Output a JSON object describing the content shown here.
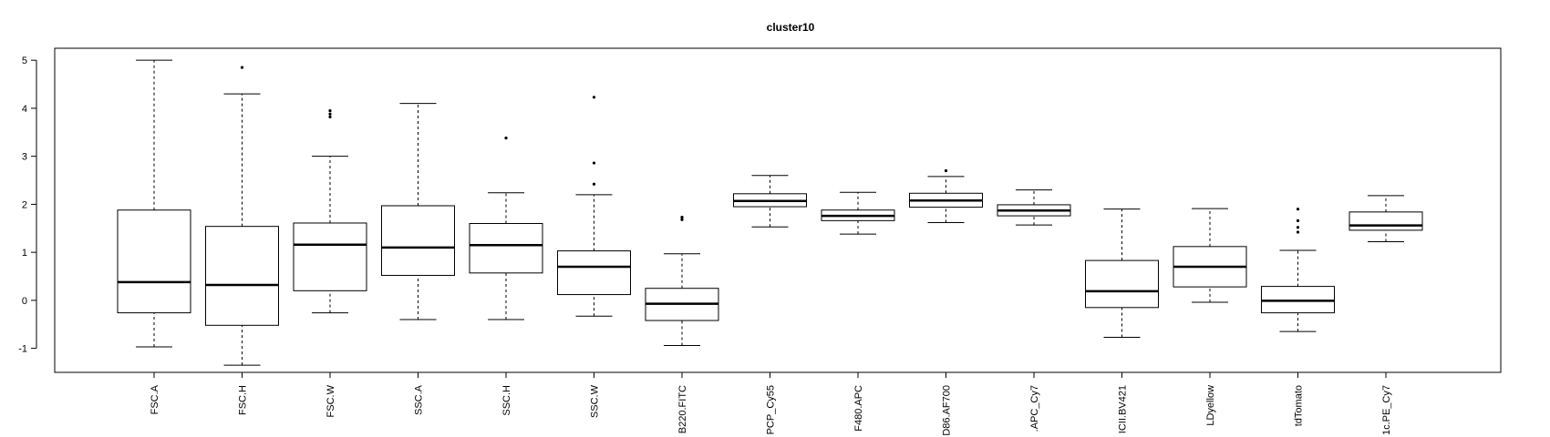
{
  "chart_data": {
    "type": "boxplot",
    "title": "cluster10",
    "xlabel": "",
    "ylabel": "",
    "ylim": [
      -1.5,
      5.25
    ],
    "yticks": [
      -1,
      0,
      1,
      2,
      3,
      4,
      5
    ],
    "grid": false,
    "legend": "none",
    "colors": {
      "box_fill": "#ffffff",
      "stroke": "#000000"
    },
    "categories": [
      "FSC.A",
      "FSC.H",
      "FSC.W",
      "SSC.A",
      "SSC.H",
      "SSC.W",
      "B220.FITC",
      "PCP_Cy55",
      "F480.APC",
      "D86.AF700",
      ".APC_Cy7",
      "ICII.BV421",
      "LDyellow",
      "tdTomato",
      "1c.PE_Cy7"
    ],
    "boxes": [
      {
        "label": "FSC.A",
        "min": -0.97,
        "q1": -0.26,
        "median": 0.38,
        "q3": 1.88,
        "max": 5.0,
        "outliers": []
      },
      {
        "label": "FSC.H",
        "min": -1.35,
        "q1": -0.52,
        "median": 0.32,
        "q3": 1.54,
        "max": 4.3,
        "outliers": [
          4.85
        ]
      },
      {
        "label": "FSC.W",
        "min": -0.26,
        "q1": 0.2,
        "median": 1.16,
        "q3": 1.61,
        "max": 3.0,
        "outliers": [
          3.82,
          3.88,
          3.95
        ]
      },
      {
        "label": "SSC.A",
        "min": -0.4,
        "q1": 0.52,
        "median": 1.1,
        "q3": 1.97,
        "max": 4.1,
        "outliers": []
      },
      {
        "label": "SSC.H",
        "min": -0.4,
        "q1": 0.57,
        "median": 1.15,
        "q3": 1.6,
        "max": 2.24,
        "outliers": [
          3.38
        ]
      },
      {
        "label": "SSC.W",
        "min": -0.33,
        "q1": 0.12,
        "median": 0.7,
        "q3": 1.03,
        "max": 2.2,
        "outliers": [
          2.42,
          2.86,
          4.23
        ]
      },
      {
        "label": "B220.FITC",
        "min": -0.94,
        "q1": -0.42,
        "median": -0.07,
        "q3": 0.25,
        "max": 0.97,
        "outliers": [
          1.68,
          1.73
        ]
      },
      {
        "label": "PCP_Cy55",
        "min": 1.53,
        "q1": 1.95,
        "median": 2.07,
        "q3": 2.22,
        "max": 2.6,
        "outliers": []
      },
      {
        "label": "F480.APC",
        "min": 1.38,
        "q1": 1.66,
        "median": 1.76,
        "q3": 1.88,
        "max": 2.25,
        "outliers": []
      },
      {
        "label": "D86.AF700",
        "min": 1.62,
        "q1": 1.94,
        "median": 2.08,
        "q3": 2.23,
        "max": 2.58,
        "outliers": [
          2.7
        ]
      },
      {
        "label": ".APC_Cy7",
        "min": 1.57,
        "q1": 1.76,
        "median": 1.87,
        "q3": 1.99,
        "max": 2.3,
        "outliers": []
      },
      {
        "label": "ICII.BV421",
        "min": -0.77,
        "q1": -0.15,
        "median": 0.19,
        "q3": 0.83,
        "max": 1.9,
        "outliers": []
      },
      {
        "label": "LDyellow",
        "min": -0.04,
        "q1": 0.28,
        "median": 0.7,
        "q3": 1.12,
        "max": 1.91,
        "outliers": []
      },
      {
        "label": "tdTomato",
        "min": -0.65,
        "q1": -0.26,
        "median": -0.01,
        "q3": 0.29,
        "max": 1.04,
        "outliers": [
          1.42,
          1.52,
          1.66,
          1.9
        ]
      },
      {
        "label": "1c.PE_Cy7",
        "min": 1.22,
        "q1": 1.46,
        "median": 1.56,
        "q3": 1.84,
        "max": 2.18,
        "outliers": []
      }
    ]
  }
}
